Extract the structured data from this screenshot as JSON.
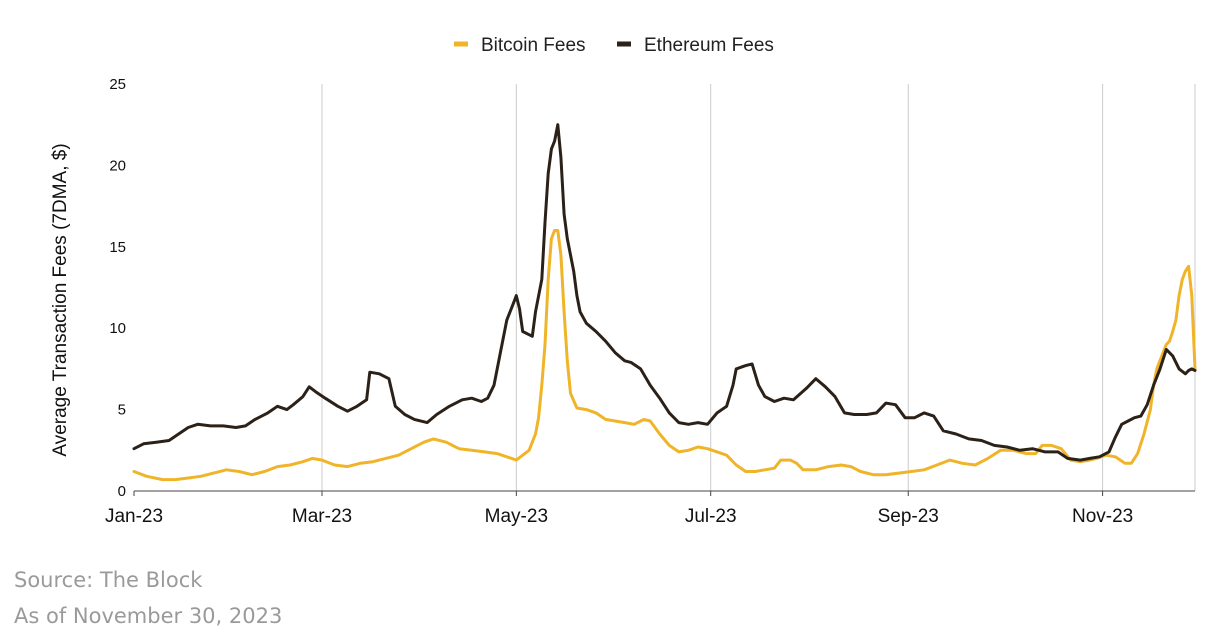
{
  "chart_data": {
    "type": "line",
    "ylabel": "Average Transaction Fees (7DMA, $)",
    "xlabel": "",
    "ylim": [
      0,
      25
    ],
    "yticks": [
      0,
      5,
      10,
      15,
      20,
      25
    ],
    "x_start": "2023-01-01",
    "x_end": "2023-11-30",
    "xticks": [
      {
        "date": "2023-01-01",
        "label": "Jan-23"
      },
      {
        "date": "2023-03-01",
        "label": "Mar-23"
      },
      {
        "date": "2023-05-01",
        "label": "May-23"
      },
      {
        "date": "2023-07-01",
        "label": "Jul-23"
      },
      {
        "date": "2023-09-01",
        "label": "Sep-23"
      },
      {
        "date": "2023-11-01",
        "label": "Nov-23"
      }
    ],
    "grid": "vertical",
    "legend_position": "top-center",
    "series": [
      {
        "name": "Bitcoin Fees",
        "color": "#F0B429",
        "points": [
          [
            "2023-01-01",
            1.2
          ],
          [
            "2023-01-05",
            0.9
          ],
          [
            "2023-01-10",
            0.7
          ],
          [
            "2023-01-14",
            0.7
          ],
          [
            "2023-01-18",
            0.8
          ],
          [
            "2023-01-22",
            0.9
          ],
          [
            "2023-01-26",
            1.1
          ],
          [
            "2023-01-30",
            1.3
          ],
          [
            "2023-02-03",
            1.2
          ],
          [
            "2023-02-07",
            1.0
          ],
          [
            "2023-02-11",
            1.2
          ],
          [
            "2023-02-15",
            1.5
          ],
          [
            "2023-02-19",
            1.6
          ],
          [
            "2023-02-23",
            1.8
          ],
          [
            "2023-02-26",
            2.0
          ],
          [
            "2023-03-01",
            1.9
          ],
          [
            "2023-03-05",
            1.6
          ],
          [
            "2023-03-09",
            1.5
          ],
          [
            "2023-03-13",
            1.7
          ],
          [
            "2023-03-17",
            1.8
          ],
          [
            "2023-03-21",
            2.0
          ],
          [
            "2023-03-25",
            2.2
          ],
          [
            "2023-03-29",
            2.6
          ],
          [
            "2023-04-02",
            3.0
          ],
          [
            "2023-04-05",
            3.2
          ],
          [
            "2023-04-09",
            3.0
          ],
          [
            "2023-04-13",
            2.6
          ],
          [
            "2023-04-17",
            2.5
          ],
          [
            "2023-04-21",
            2.4
          ],
          [
            "2023-04-25",
            2.3
          ],
          [
            "2023-04-28",
            2.1
          ],
          [
            "2023-05-01",
            1.9
          ],
          [
            "2023-05-03",
            2.2
          ],
          [
            "2023-05-05",
            2.5
          ],
          [
            "2023-05-07",
            3.5
          ],
          [
            "2023-05-08",
            4.5
          ],
          [
            "2023-05-09",
            6.5
          ],
          [
            "2023-05-10",
            9.0
          ],
          [
            "2023-05-11",
            13.0
          ],
          [
            "2023-05-12",
            15.5
          ],
          [
            "2023-05-13",
            16.0
          ],
          [
            "2023-05-14",
            16.0
          ],
          [
            "2023-05-15",
            14.5
          ],
          [
            "2023-05-16",
            11.0
          ],
          [
            "2023-05-17",
            8.0
          ],
          [
            "2023-05-18",
            6.0
          ],
          [
            "2023-05-20",
            5.1
          ],
          [
            "2023-05-23",
            5.0
          ],
          [
            "2023-05-26",
            4.8
          ],
          [
            "2023-05-29",
            4.4
          ],
          [
            "2023-06-01",
            4.3
          ],
          [
            "2023-06-04",
            4.2
          ],
          [
            "2023-06-07",
            4.1
          ],
          [
            "2023-06-10",
            4.4
          ],
          [
            "2023-06-12",
            4.3
          ],
          [
            "2023-06-15",
            3.5
          ],
          [
            "2023-06-18",
            2.8
          ],
          [
            "2023-06-21",
            2.4
          ],
          [
            "2023-06-24",
            2.5
          ],
          [
            "2023-06-27",
            2.7
          ],
          [
            "2023-06-30",
            2.6
          ],
          [
            "2023-07-03",
            2.4
          ],
          [
            "2023-07-06",
            2.2
          ],
          [
            "2023-07-09",
            1.6
          ],
          [
            "2023-07-12",
            1.2
          ],
          [
            "2023-07-15",
            1.2
          ],
          [
            "2023-07-18",
            1.3
          ],
          [
            "2023-07-21",
            1.4
          ],
          [
            "2023-07-23",
            1.9
          ],
          [
            "2023-07-26",
            1.9
          ],
          [
            "2023-07-28",
            1.7
          ],
          [
            "2023-07-30",
            1.3
          ],
          [
            "2023-08-03",
            1.3
          ],
          [
            "2023-08-07",
            1.5
          ],
          [
            "2023-08-11",
            1.6
          ],
          [
            "2023-08-14",
            1.5
          ],
          [
            "2023-08-17",
            1.2
          ],
          [
            "2023-08-21",
            1.0
          ],
          [
            "2023-08-25",
            1.0
          ],
          [
            "2023-08-29",
            1.1
          ],
          [
            "2023-09-02",
            1.2
          ],
          [
            "2023-09-06",
            1.3
          ],
          [
            "2023-09-10",
            1.6
          ],
          [
            "2023-09-14",
            1.9
          ],
          [
            "2023-09-18",
            1.7
          ],
          [
            "2023-09-22",
            1.6
          ],
          [
            "2023-09-26",
            2.0
          ],
          [
            "2023-09-30",
            2.5
          ],
          [
            "2023-10-04",
            2.5
          ],
          [
            "2023-10-08",
            2.3
          ],
          [
            "2023-10-11",
            2.3
          ],
          [
            "2023-10-13",
            2.8
          ],
          [
            "2023-10-16",
            2.8
          ],
          [
            "2023-10-19",
            2.6
          ],
          [
            "2023-10-22",
            1.9
          ],
          [
            "2023-10-25",
            1.8
          ],
          [
            "2023-10-28",
            1.9
          ],
          [
            "2023-10-30",
            2.0
          ],
          [
            "2023-11-02",
            2.2
          ],
          [
            "2023-11-05",
            2.1
          ],
          [
            "2023-11-08",
            1.7
          ],
          [
            "2023-11-10",
            1.7
          ],
          [
            "2023-11-12",
            2.3
          ],
          [
            "2023-11-14",
            3.5
          ],
          [
            "2023-11-16",
            5.0
          ],
          [
            "2023-11-17",
            6.5
          ],
          [
            "2023-11-18",
            7.5
          ],
          [
            "2023-11-20",
            8.5
          ],
          [
            "2023-11-21",
            9.0
          ],
          [
            "2023-11-22",
            9.2
          ],
          [
            "2023-11-23",
            9.8
          ],
          [
            "2023-11-24",
            10.5
          ],
          [
            "2023-11-25",
            12.0
          ],
          [
            "2023-11-26",
            13.0
          ],
          [
            "2023-11-27",
            13.5
          ],
          [
            "2023-11-28",
            13.8
          ],
          [
            "2023-11-29",
            12.0
          ],
          [
            "2023-11-30",
            7.5
          ]
        ]
      },
      {
        "name": "Ethereum Fees",
        "color": "#2B2118",
        "points": [
          [
            "2023-01-01",
            2.6
          ],
          [
            "2023-01-04",
            2.9
          ],
          [
            "2023-01-08",
            3.0
          ],
          [
            "2023-01-12",
            3.1
          ],
          [
            "2023-01-15",
            3.5
          ],
          [
            "2023-01-18",
            3.9
          ],
          [
            "2023-01-21",
            4.1
          ],
          [
            "2023-01-25",
            4.0
          ],
          [
            "2023-01-29",
            4.0
          ],
          [
            "2023-02-02",
            3.9
          ],
          [
            "2023-02-05",
            4.0
          ],
          [
            "2023-02-08",
            4.4
          ],
          [
            "2023-02-12",
            4.8
          ],
          [
            "2023-02-15",
            5.2
          ],
          [
            "2023-02-18",
            5.0
          ],
          [
            "2023-02-20",
            5.3
          ],
          [
            "2023-02-23",
            5.8
          ],
          [
            "2023-02-25",
            6.4
          ],
          [
            "2023-02-27",
            6.1
          ],
          [
            "2023-03-02",
            5.7
          ],
          [
            "2023-03-06",
            5.2
          ],
          [
            "2023-03-09",
            4.9
          ],
          [
            "2023-03-12",
            5.2
          ],
          [
            "2023-03-15",
            5.6
          ],
          [
            "2023-03-16",
            7.3
          ],
          [
            "2023-03-19",
            7.2
          ],
          [
            "2023-03-22",
            6.9
          ],
          [
            "2023-03-24",
            5.2
          ],
          [
            "2023-03-27",
            4.7
          ],
          [
            "2023-03-30",
            4.4
          ],
          [
            "2023-04-03",
            4.2
          ],
          [
            "2023-04-06",
            4.7
          ],
          [
            "2023-04-10",
            5.2
          ],
          [
            "2023-04-14",
            5.6
          ],
          [
            "2023-04-17",
            5.7
          ],
          [
            "2023-04-20",
            5.5
          ],
          [
            "2023-04-22",
            5.7
          ],
          [
            "2023-04-24",
            6.5
          ],
          [
            "2023-04-26",
            8.5
          ],
          [
            "2023-04-28",
            10.5
          ],
          [
            "2023-04-30",
            11.5
          ],
          [
            "2023-05-01",
            12.0
          ],
          [
            "2023-05-02",
            11.2
          ],
          [
            "2023-05-03",
            9.8
          ],
          [
            "2023-05-05",
            9.6
          ],
          [
            "2023-05-06",
            9.5
          ],
          [
            "2023-05-07",
            11.0
          ],
          [
            "2023-05-09",
            13.0
          ],
          [
            "2023-05-10",
            16.5
          ],
          [
            "2023-05-11",
            19.5
          ],
          [
            "2023-05-12",
            21.0
          ],
          [
            "2023-05-13",
            21.5
          ],
          [
            "2023-05-14",
            22.5
          ],
          [
            "2023-05-15",
            20.5
          ],
          [
            "2023-05-16",
            17.0
          ],
          [
            "2023-05-17",
            15.5
          ],
          [
            "2023-05-18",
            14.5
          ],
          [
            "2023-05-19",
            13.5
          ],
          [
            "2023-05-20",
            12.0
          ],
          [
            "2023-05-21",
            11.0
          ],
          [
            "2023-05-23",
            10.3
          ],
          [
            "2023-05-26",
            9.8
          ],
          [
            "2023-05-29",
            9.2
          ],
          [
            "2023-06-01",
            8.5
          ],
          [
            "2023-06-04",
            8.0
          ],
          [
            "2023-06-06",
            7.9
          ],
          [
            "2023-06-09",
            7.5
          ],
          [
            "2023-06-12",
            6.5
          ],
          [
            "2023-06-15",
            5.7
          ],
          [
            "2023-06-18",
            4.8
          ],
          [
            "2023-06-21",
            4.2
          ],
          [
            "2023-06-24",
            4.1
          ],
          [
            "2023-06-27",
            4.2
          ],
          [
            "2023-06-30",
            4.1
          ],
          [
            "2023-07-03",
            4.8
          ],
          [
            "2023-07-06",
            5.2
          ],
          [
            "2023-07-08",
            6.5
          ],
          [
            "2023-07-09",
            7.5
          ],
          [
            "2023-07-12",
            7.7
          ],
          [
            "2023-07-14",
            7.8
          ],
          [
            "2023-07-16",
            6.5
          ],
          [
            "2023-07-18",
            5.8
          ],
          [
            "2023-07-21",
            5.5
          ],
          [
            "2023-07-24",
            5.7
          ],
          [
            "2023-07-27",
            5.6
          ],
          [
            "2023-07-31",
            6.3
          ],
          [
            "2023-08-03",
            6.9
          ],
          [
            "2023-08-06",
            6.4
          ],
          [
            "2023-08-09",
            5.8
          ],
          [
            "2023-08-12",
            4.8
          ],
          [
            "2023-08-15",
            4.7
          ],
          [
            "2023-08-19",
            4.7
          ],
          [
            "2023-08-22",
            4.8
          ],
          [
            "2023-08-25",
            5.4
          ],
          [
            "2023-08-28",
            5.3
          ],
          [
            "2023-08-31",
            4.5
          ],
          [
            "2023-09-03",
            4.5
          ],
          [
            "2023-09-06",
            4.8
          ],
          [
            "2023-09-09",
            4.6
          ],
          [
            "2023-09-12",
            3.7
          ],
          [
            "2023-09-16",
            3.5
          ],
          [
            "2023-09-20",
            3.2
          ],
          [
            "2023-09-24",
            3.1
          ],
          [
            "2023-09-28",
            2.8
          ],
          [
            "2023-10-02",
            2.7
          ],
          [
            "2023-10-06",
            2.5
          ],
          [
            "2023-10-10",
            2.6
          ],
          [
            "2023-10-14",
            2.4
          ],
          [
            "2023-10-18",
            2.4
          ],
          [
            "2023-10-21",
            2.0
          ],
          [
            "2023-10-25",
            1.9
          ],
          [
            "2023-10-28",
            2.0
          ],
          [
            "2023-10-31",
            2.1
          ],
          [
            "2023-11-03",
            2.4
          ],
          [
            "2023-11-05",
            3.3
          ],
          [
            "2023-11-07",
            4.1
          ],
          [
            "2023-11-09",
            4.3
          ],
          [
            "2023-11-11",
            4.5
          ],
          [
            "2023-11-13",
            4.6
          ],
          [
            "2023-11-15",
            5.3
          ],
          [
            "2023-11-17",
            6.5
          ],
          [
            "2023-11-19",
            7.5
          ],
          [
            "2023-11-21",
            8.7
          ],
          [
            "2023-11-23",
            8.3
          ],
          [
            "2023-11-25",
            7.5
          ],
          [
            "2023-11-27",
            7.2
          ],
          [
            "2023-11-28",
            7.4
          ],
          [
            "2023-11-29",
            7.5
          ],
          [
            "2023-11-30",
            7.4
          ]
        ]
      }
    ]
  },
  "footer": {
    "source": "Source: The Block",
    "as_of": "As of November 30, 2023"
  }
}
